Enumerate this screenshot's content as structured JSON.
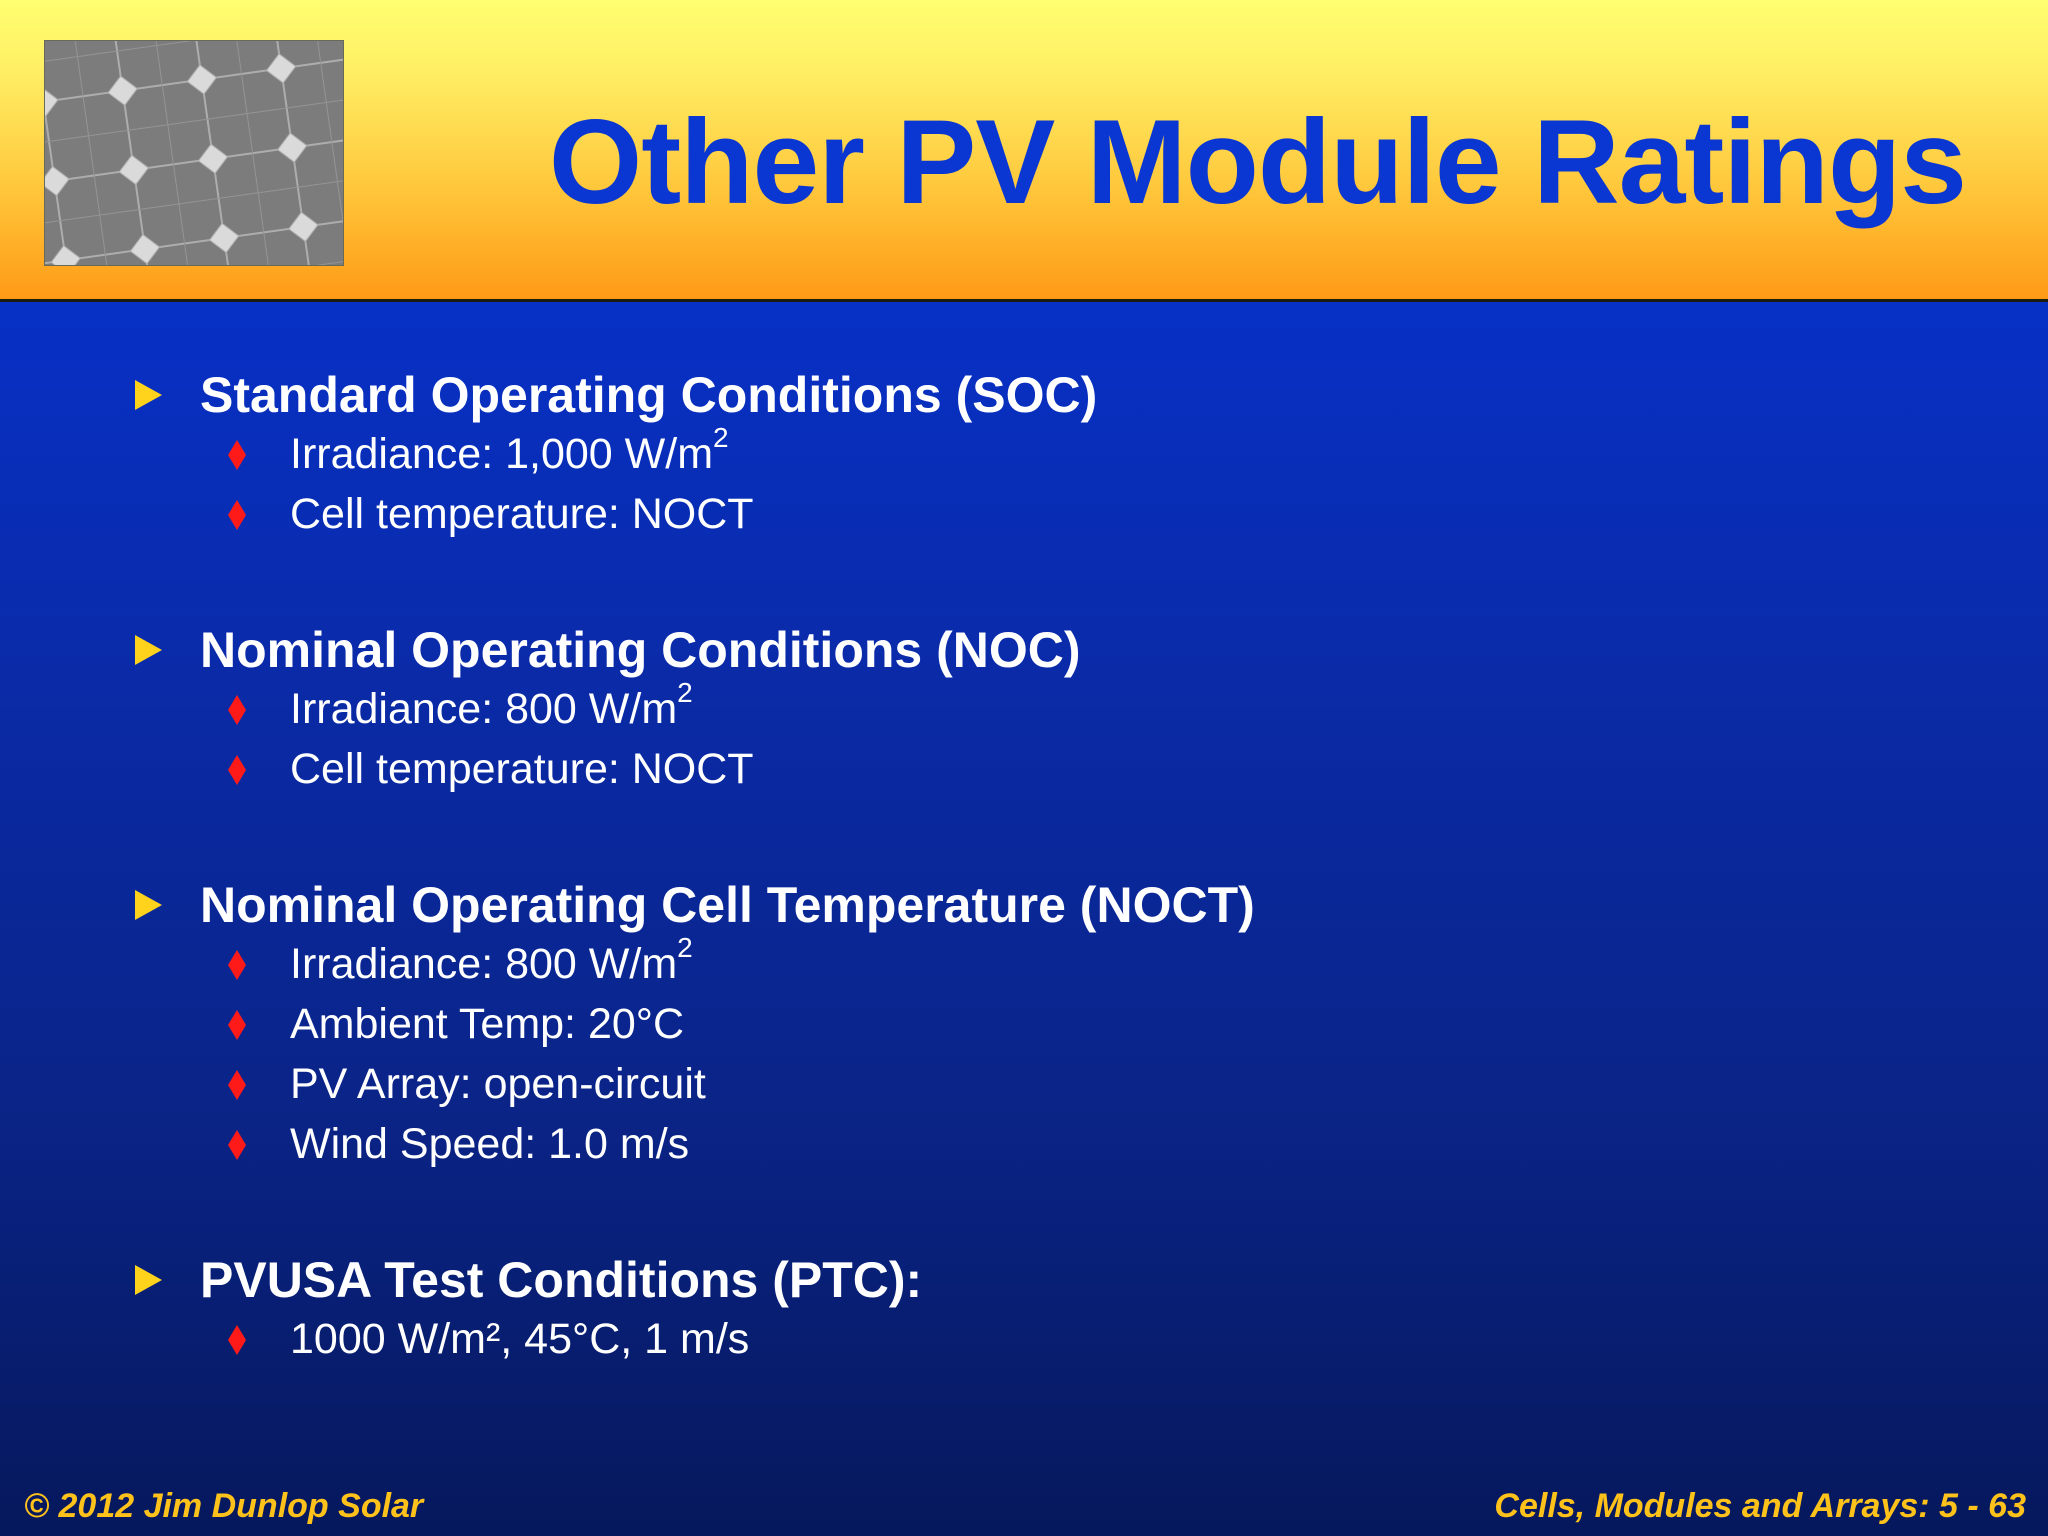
{
  "slide": {
    "title": "Other PV Module Ratings",
    "photo_description_icon": "solar-cells-photo",
    "colors": {
      "title": "#0a36d2",
      "header_top": "#ffff70",
      "header_bottom": "#ff9a16",
      "background_top": "#0a2fd0",
      "background_bottom": "#06185c",
      "bullet_triangle": "#ffd21c",
      "bullet_diamond": "#ff1a1a",
      "footer_text": "#ffc21a"
    },
    "sections": [
      {
        "heading": "Standard Operating Conditions (SOC)",
        "items": [
          {
            "text": "Irradiance:  1,000 W/m",
            "sup": "2"
          },
          {
            "text": "Cell temperature:  NOCT",
            "sup": ""
          }
        ]
      },
      {
        "heading": "Nominal Operating Conditions (NOC)",
        "items": [
          {
            "text": "Irradiance:  800 W/m",
            "sup": "2"
          },
          {
            "text": "Cell temperature:  NOCT",
            "sup": ""
          }
        ]
      },
      {
        "heading": "Nominal Operating Cell Temperature (NOCT)",
        "items": [
          {
            "text": "Irradiance:  800 W/m",
            "sup": "2"
          },
          {
            "text": "Ambient Temp:  20°C",
            "sup": ""
          },
          {
            "text": "PV Array:  open-circuit",
            "sup": ""
          },
          {
            "text": "Wind Speed:  1.0 m/s",
            "sup": ""
          }
        ]
      },
      {
        "heading": "PVUSA Test Conditions (PTC):",
        "items": [
          {
            "text": "1000 W/m², 45°C, 1 m/s",
            "sup": ""
          }
        ]
      }
    ],
    "footer": {
      "left": "© 2012 Jim Dunlop Solar",
      "right": "Cells, Modules and Arrays: 5 - 63"
    }
  }
}
